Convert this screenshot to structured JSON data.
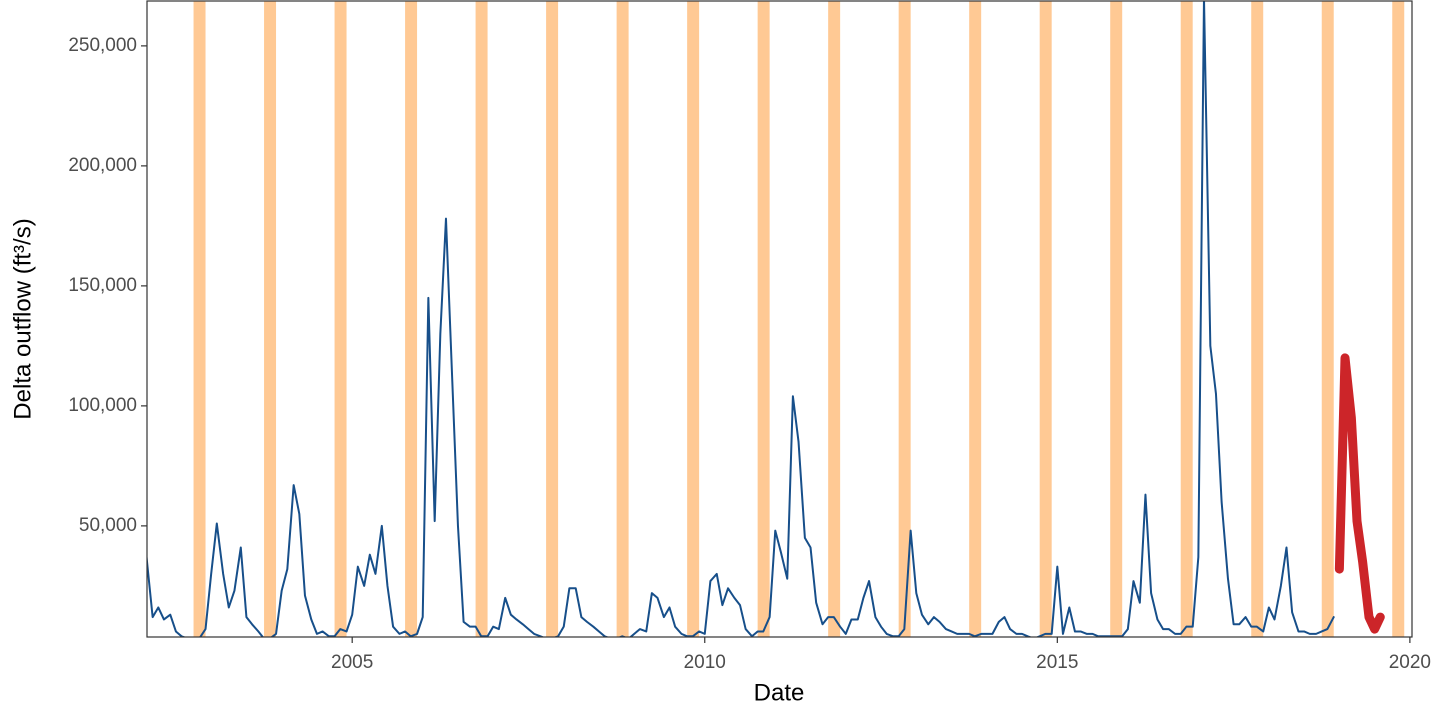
{
  "chart_data": {
    "type": "line",
    "x_label": "Date",
    "y_label": "Delta outflow (ft³/s)",
    "xlim": [
      2002.09,
      2020.03
    ],
    "ylim": [
      3700,
      268700
    ],
    "xticks": [
      2005,
      2010,
      2015,
      2020
    ],
    "yticks": [
      {
        "value": 50000,
        "label": "50,000"
      },
      {
        "value": 100000,
        "label": "100,000"
      },
      {
        "value": 150000,
        "label": "150,000"
      },
      {
        "value": 200000,
        "label": "200,000"
      },
      {
        "value": 250000,
        "label": "250,000"
      }
    ],
    "shaded_periods": [
      [
        2002.75,
        2002.92
      ],
      [
        2003.75,
        2003.92
      ],
      [
        2004.75,
        2004.92
      ],
      [
        2005.75,
        2005.92
      ],
      [
        2006.75,
        2006.92
      ],
      [
        2007.75,
        2007.92
      ],
      [
        2008.75,
        2008.92
      ],
      [
        2009.75,
        2009.92
      ],
      [
        2010.75,
        2010.92
      ],
      [
        2011.75,
        2011.92
      ],
      [
        2012.75,
        2012.92
      ],
      [
        2013.75,
        2013.92
      ],
      [
        2014.75,
        2014.92
      ],
      [
        2015.75,
        2015.92
      ],
      [
        2016.75,
        2016.92
      ],
      [
        2017.75,
        2017.92
      ],
      [
        2018.75,
        2018.92
      ],
      [
        2019.75,
        2019.92
      ]
    ],
    "shade_color": "#ffc994",
    "series": [
      {
        "color": "#174f8a",
        "width": 2,
        "x": [
          2002.08,
          2002.17,
          2002.25,
          2002.33,
          2002.42,
          2002.5,
          2002.58,
          2002.67,
          2002.75,
          2002.83,
          2002.92,
          2003.0,
          2003.08,
          2003.17,
          2003.25,
          2003.33,
          2003.42,
          2003.5,
          2003.58,
          2003.67,
          2003.75,
          2003.83,
          2003.92,
          2004.0,
          2004.08,
          2004.17,
          2004.25,
          2004.33,
          2004.42,
          2004.5,
          2004.58,
          2004.67,
          2004.75,
          2004.83,
          2004.92,
          2005.0,
          2005.08,
          2005.17,
          2005.25,
          2005.33,
          2005.42,
          2005.5,
          2005.58,
          2005.67,
          2005.75,
          2005.83,
          2005.92,
          2006.0,
          2006.08,
          2006.17,
          2006.25,
          2006.33,
          2006.42,
          2006.5,
          2006.58,
          2006.67,
          2006.75,
          2006.83,
          2006.92,
          2007.0,
          2007.08,
          2007.17,
          2007.25,
          2007.33,
          2007.42,
          2007.5,
          2007.58,
          2007.67,
          2007.75,
          2007.83,
          2007.92,
          2008.0,
          2008.08,
          2008.17,
          2008.25,
          2008.33,
          2008.42,
          2008.5,
          2008.58,
          2008.67,
          2008.75,
          2008.83,
          2008.92,
          2009.0,
          2009.08,
          2009.17,
          2009.25,
          2009.33,
          2009.42,
          2009.5,
          2009.58,
          2009.67,
          2009.75,
          2009.83,
          2009.92,
          2010.0,
          2010.08,
          2010.17,
          2010.25,
          2010.33,
          2010.42,
          2010.5,
          2010.58,
          2010.67,
          2010.75,
          2010.83,
          2010.92,
          2011.0,
          2011.08,
          2011.17,
          2011.25,
          2011.33,
          2011.42,
          2011.5,
          2011.58,
          2011.67,
          2011.75,
          2011.83,
          2011.92,
          2012.0,
          2012.08,
          2012.17,
          2012.25,
          2012.33,
          2012.42,
          2012.5,
          2012.58,
          2012.67,
          2012.75,
          2012.83,
          2012.92,
          2013.0,
          2013.08,
          2013.17,
          2013.25,
          2013.33,
          2013.42,
          2013.5,
          2013.58,
          2013.67,
          2013.75,
          2013.83,
          2013.92,
          2014.0,
          2014.08,
          2014.17,
          2014.25,
          2014.33,
          2014.42,
          2014.5,
          2014.58,
          2014.67,
          2014.75,
          2014.83,
          2014.92,
          2015.0,
          2015.08,
          2015.17,
          2015.25,
          2015.33,
          2015.42,
          2015.5,
          2015.58,
          2015.67,
          2015.75,
          2015.83,
          2015.92,
          2016.0,
          2016.08,
          2016.17,
          2016.25,
          2016.33,
          2016.42,
          2016.5,
          2016.58,
          2016.67,
          2016.75,
          2016.83,
          2016.92,
          2017.0,
          2017.08,
          2017.17,
          2017.25,
          2017.33,
          2017.42,
          2017.5,
          2017.58,
          2017.67,
          2017.75,
          2017.83,
          2017.92,
          2018.0,
          2018.08,
          2018.17,
          2018.25,
          2018.33,
          2018.42,
          2018.5,
          2018.58,
          2018.67,
          2018.75,
          2018.83,
          2018.92
        ],
        "values": [
          38000,
          12000,
          16000,
          11000,
          13000,
          6000,
          4000,
          3000,
          3000,
          3000,
          7000,
          30000,
          51000,
          30000,
          16000,
          23000,
          41000,
          12000,
          9000,
          6000,
          3000,
          3000,
          5000,
          23000,
          32000,
          67000,
          55000,
          21000,
          11000,
          5000,
          6000,
          4000,
          4000,
          7000,
          6000,
          13000,
          33000,
          25000,
          38000,
          30000,
          50000,
          25000,
          8000,
          5000,
          6000,
          4000,
          5000,
          12000,
          145000,
          52000,
          130000,
          178000,
          110000,
          50000,
          10000,
          8000,
          8000,
          4000,
          4000,
          8000,
          7000,
          20000,
          13000,
          11000,
          9000,
          7000,
          5000,
          4000,
          3000,
          3000,
          4000,
          8000,
          24000,
          24000,
          12000,
          10000,
          8000,
          6000,
          4000,
          3000,
          3000,
          4000,
          3000,
          5000,
          7000,
          6000,
          22000,
          20000,
          12000,
          16000,
          8000,
          5000,
          4000,
          4000,
          6000,
          5000,
          27000,
          30000,
          17000,
          24000,
          20000,
          17000,
          7000,
          4000,
          6000,
          6000,
          12000,
          48000,
          39000,
          28000,
          104000,
          85000,
          45000,
          41000,
          18000,
          9000,
          12000,
          12000,
          8000,
          5000,
          11000,
          11000,
          20000,
          27000,
          12000,
          8000,
          5000,
          4000,
          4000,
          7000,
          48000,
          22000,
          13000,
          9000,
          12000,
          10000,
          7000,
          6000,
          5000,
          5000,
          5000,
          4000,
          5000,
          5000,
          5000,
          10000,
          12000,
          7000,
          5000,
          5000,
          4000,
          3000,
          4000,
          5000,
          5000,
          33000,
          5000,
          16000,
          6000,
          6000,
          5000,
          5000,
          4000,
          4000,
          4000,
          4000,
          4000,
          7000,
          27000,
          18000,
          63000,
          22000,
          11000,
          7000,
          7000,
          5000,
          5000,
          8000,
          8000,
          37000,
          270000,
          125000,
          105000,
          60000,
          28000,
          9000,
          9000,
          12000,
          8000,
          8000,
          6000,
          16000,
          11000,
          25000,
          41000,
          14000,
          6000,
          6000,
          5000,
          5000,
          6000,
          7000,
          12000
        ]
      },
      {
        "color": "#cc2529",
        "width": 9,
        "x": [
          2019.0,
          2019.08,
          2019.17,
          2019.25,
          2019.33,
          2019.42,
          2019.5,
          2019.58
        ],
        "values": [
          32000,
          120000,
          95000,
          52000,
          35000,
          12000,
          7000,
          12000
        ]
      }
    ]
  }
}
